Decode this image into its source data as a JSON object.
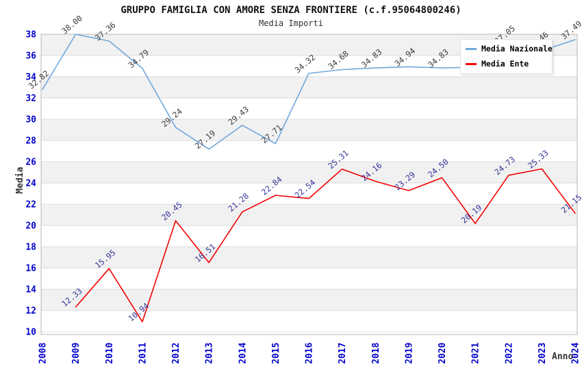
{
  "title": "GRUPPO FAMIGLIA CON AMORE SENZA FRONTIERE (c.f.95064800246)",
  "subtitle": "Media Importi",
  "legend": {
    "position": "top-right",
    "items": [
      {
        "label": "Media Nazionale",
        "color": "#6fa8dc"
      },
      {
        "label": "Media Ente",
        "color": "#f40000"
      }
    ]
  },
  "axes": {
    "y_title": "Media",
    "x_title": "Anno",
    "y_ticks": [
      38,
      36,
      34,
      32,
      30,
      28,
      26,
      24,
      22,
      20,
      18,
      16,
      14,
      12,
      10
    ],
    "x_ticks": [
      "2008",
      "2009",
      "2010",
      "2011",
      "2012",
      "2013",
      "2014",
      "2015",
      "2016",
      "2017",
      "2018",
      "2019",
      "2020",
      "2021",
      "2022",
      "2023",
      "2024"
    ]
  },
  "chart_data": {
    "type": "line",
    "title": "GRUPPO FAMIGLIA CON AMORE SENZA FRONTIERE (c.f.95064800246)",
    "subtitle": "Media Importi",
    "xlabel": "Anno",
    "ylabel": "Media",
    "ylim": [
      10,
      38
    ],
    "grid": true,
    "legend_position": "top-right",
    "x": [
      2008,
      2009,
      2010,
      2011,
      2012,
      2013,
      2014,
      2015,
      2016,
      2017,
      2018,
      2019,
      2020,
      2021,
      2022,
      2023,
      2024
    ],
    "series": [
      {
        "name": "Media Nazionale",
        "color": "#6fa8dc",
        "label_color": "#3a3a3a",
        "values": [
          32.82,
          38.0,
          37.36,
          34.79,
          29.24,
          27.19,
          29.43,
          27.71,
          34.32,
          34.68,
          34.83,
          34.94,
          34.83,
          34.9,
          37.05,
          36.46,
          37.49
        ],
        "labels": [
          "32.82",
          "38.00",
          "37.36",
          "34.79",
          "29.24",
          "27.19",
          "29.43",
          "27.71",
          "34.32",
          "34.68",
          "34.83",
          "34.94",
          "34.83",
          "",
          "37.05",
          "36.46",
          "37.49"
        ]
      },
      {
        "name": "Media Ente",
        "color": "#f40000",
        "label_color": "#333399",
        "values": [
          null,
          12.33,
          15.95,
          10.94,
          20.45,
          16.51,
          21.28,
          22.84,
          22.54,
          25.31,
          24.16,
          23.29,
          24.5,
          20.19,
          24.73,
          25.33,
          21.15
        ],
        "labels": [
          "",
          "12.33",
          "15.95",
          "10.94",
          "20.45",
          "16.51",
          "21.28",
          "22.84",
          "22.54",
          "25.31",
          "24.16",
          "23.29",
          "24.50",
          "20.19",
          "24.73",
          "25.33",
          "21.15"
        ]
      }
    ]
  },
  "colors": {
    "background": "#ffffff",
    "band_gray": "#f1f1f1",
    "gridline": "#dcdcdc",
    "frame": "#b6b6b6",
    "tick_label": "#0000cc",
    "axis_title": "#333333"
  }
}
